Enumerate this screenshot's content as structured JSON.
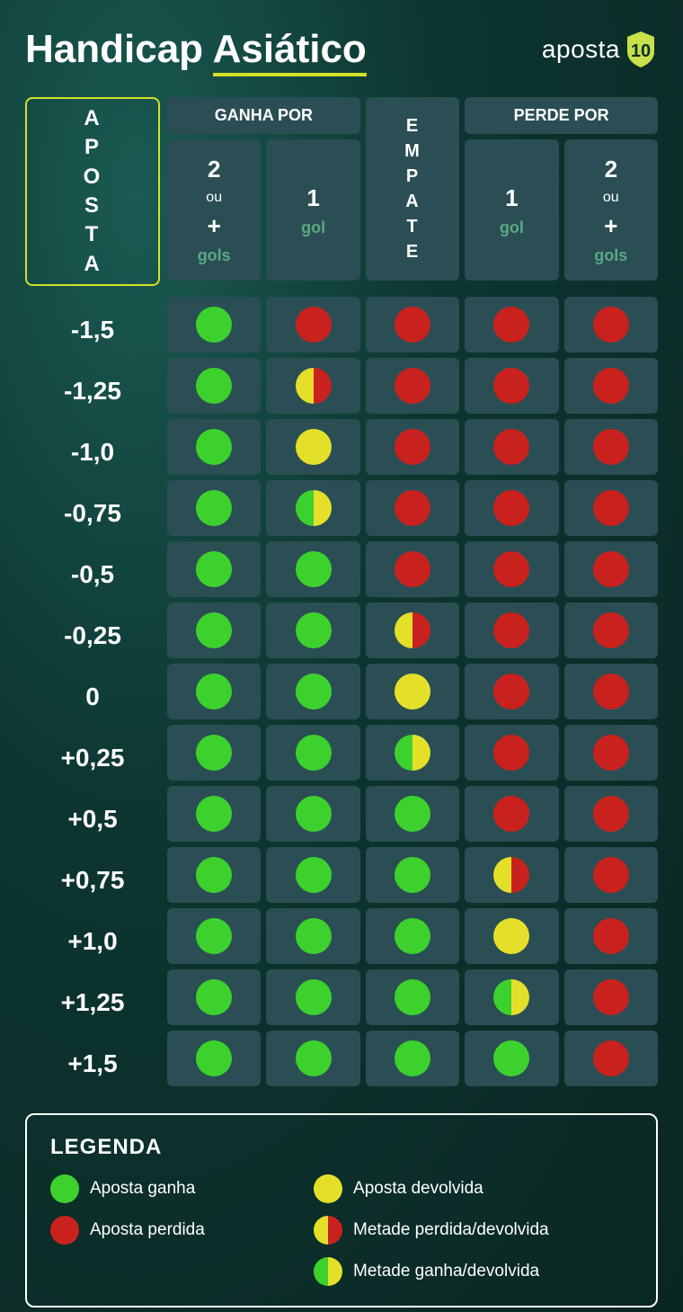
{
  "title_part1": "Handicap ",
  "title_part2": "Asiático",
  "logo_text": "aposta",
  "logo_number": "10",
  "colors": {
    "underline": "#d4e02a",
    "cell_bg": "#2a4e54",
    "green": "#3dd12e",
    "red": "#c9221e",
    "yellow": "#e4e02a",
    "accent_border": "#d4e02a",
    "sub_green_text": "#5aa884",
    "logo_shield": "#c9e04a"
  },
  "aposta_label": [
    "A",
    "P",
    "O",
    "S",
    "T",
    "A"
  ],
  "headers": {
    "ganha_por": "GANHA POR",
    "empate": [
      "E",
      "M",
      "P",
      "A",
      "T",
      "E"
    ],
    "perde_por": "PERDE POR",
    "col_2plus_num": "2",
    "col_ou": "ou",
    "col_plus": "+",
    "col_gols": "gols",
    "col_1_num": "1",
    "col_gol": "gol"
  },
  "rows": [
    {
      "label": "-1,5",
      "cells": [
        "green",
        "red",
        "red",
        "red",
        "red"
      ]
    },
    {
      "label": "-1,25",
      "cells": [
        "green",
        "yellow-red",
        "red",
        "red",
        "red"
      ]
    },
    {
      "label": "-1,0",
      "cells": [
        "green",
        "yellow",
        "red",
        "red",
        "red"
      ]
    },
    {
      "label": "-0,75",
      "cells": [
        "green",
        "green-yellow",
        "red",
        "red",
        "red"
      ]
    },
    {
      "label": "-0,5",
      "cells": [
        "green",
        "green",
        "red",
        "red",
        "red"
      ]
    },
    {
      "label": "-0,25",
      "cells": [
        "green",
        "green",
        "yellow-red",
        "red",
        "red"
      ]
    },
    {
      "label": "0",
      "cells": [
        "green",
        "green",
        "yellow",
        "red",
        "red"
      ]
    },
    {
      "label": "+0,25",
      "cells": [
        "green",
        "green",
        "green-yellow",
        "red",
        "red"
      ]
    },
    {
      "label": "+0,5",
      "cells": [
        "green",
        "green",
        "green",
        "red",
        "red"
      ]
    },
    {
      "label": "+0,75",
      "cells": [
        "green",
        "green",
        "green",
        "yellow-red",
        "red"
      ]
    },
    {
      "label": "+1,0",
      "cells": [
        "green",
        "green",
        "green",
        "yellow",
        "red"
      ]
    },
    {
      "label": "+1,25",
      "cells": [
        "green",
        "green",
        "green",
        "green-yellow",
        "red"
      ]
    },
    {
      "label": "+1,5",
      "cells": [
        "green",
        "green",
        "green",
        "green",
        "red"
      ]
    }
  ],
  "legend": {
    "title": "LEGENDA",
    "items": [
      {
        "type": "green",
        "label": "Aposta ganha"
      },
      {
        "type": "yellow",
        "label": "Aposta devolvida"
      },
      {
        "type": "red",
        "label": "Aposta perdida"
      },
      {
        "type": "yellow-red",
        "label": "Metade perdida/devolvida"
      },
      {
        "type": "empty",
        "label": ""
      },
      {
        "type": "green-yellow",
        "label": "Metade ganha/devolvida"
      }
    ]
  }
}
